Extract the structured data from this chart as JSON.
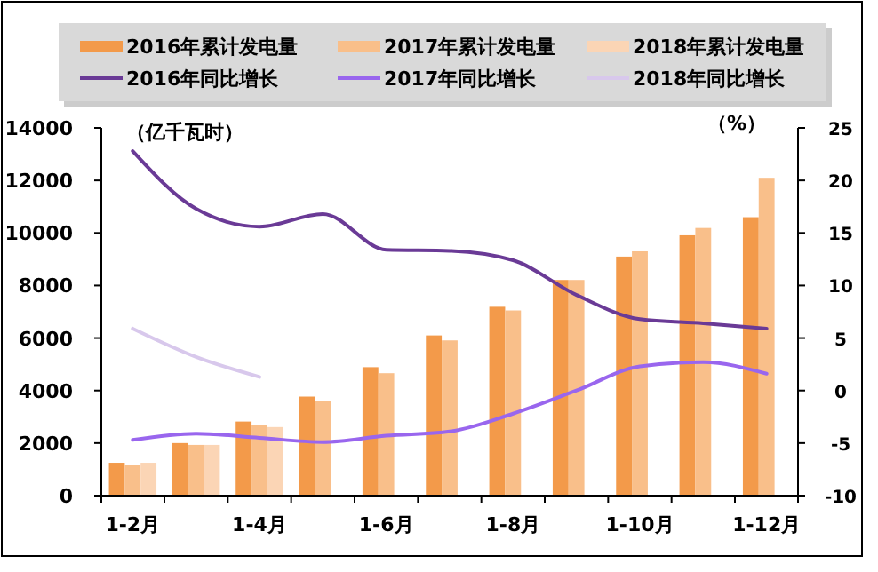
{
  "chart_data": {
    "type": "bar",
    "ylabel": "（亿千瓦时）",
    "y2label": "（%）",
    "categories": [
      "1-2月",
      null,
      "1-4月",
      null,
      "1-6月",
      null,
      "1-8月",
      null,
      "1-10月",
      null,
      "1-12月"
    ],
    "series": [
      {
        "name": "2016年累计发电量",
        "color": "#f39a4a",
        "values": [
          1250,
          2000,
          2820,
          3770,
          4890,
          6100,
          7190,
          8210,
          9100,
          9910,
          10600
        ]
      },
      {
        "name": "2017年累计发电量",
        "color": "#f9bf8a",
        "values": [
          1180,
          1930,
          2680,
          3590,
          4660,
          5910,
          7050,
          8210,
          9300,
          10190,
          12100
        ]
      },
      {
        "name": "2018年累计发电量",
        "color": "#fbd5b5",
        "values": [
          1250,
          1930,
          2610,
          null,
          null,
          null,
          null,
          null,
          null,
          null,
          null
        ]
      },
      {
        "name": "2016年同比增长",
        "type": "line",
        "axis": "y2",
        "color": "#6a3a96",
        "values": [
          22.8,
          17.3,
          15.6,
          16.8,
          13.4,
          13.3,
          12.4,
          9.1,
          6.8,
          6.4,
          5.9
        ]
      },
      {
        "name": "2017年同比增长",
        "type": "line",
        "axis": "y2",
        "color": "#9966ee",
        "values": [
          -4.7,
          -4.1,
          -4.5,
          -4.9,
          -4.3,
          -3.9,
          -2.2,
          0,
          2.3,
          2.7,
          1.6
        ]
      },
      {
        "name": "2018年同比增长",
        "type": "line",
        "axis": "y2",
        "color": "#d8c8ec",
        "values": [
          5.9,
          3.2,
          1.3,
          null,
          null,
          null,
          null,
          null,
          null,
          null,
          null
        ]
      }
    ],
    "ylim": [
      0,
      14000
    ],
    "yticks": [
      0,
      2000,
      4000,
      6000,
      8000,
      10000,
      12000,
      14000
    ],
    "y2lim": [
      -10,
      25
    ],
    "y2ticks": [
      -10,
      -5,
      0,
      5,
      10,
      15,
      20,
      25
    ],
    "legend": "top",
    "grid": false
  }
}
